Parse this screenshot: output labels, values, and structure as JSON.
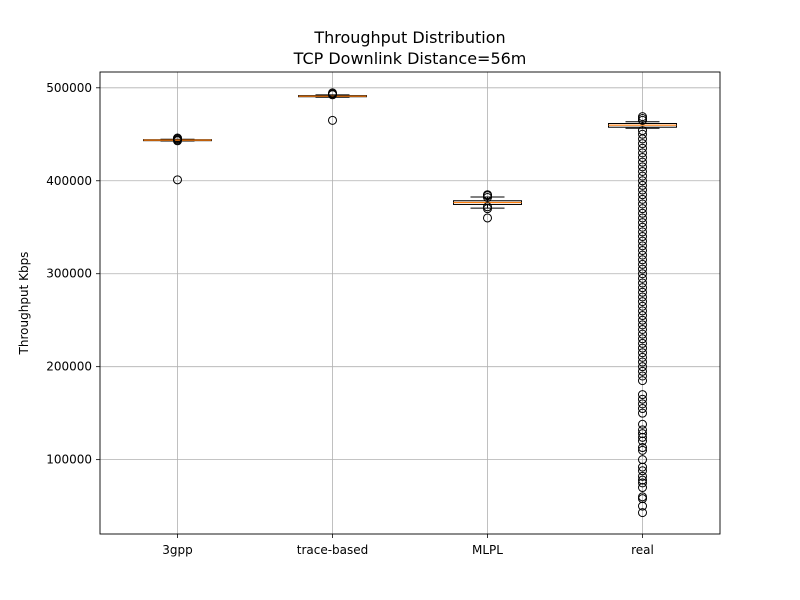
{
  "chart_data": {
    "type": "box",
    "title": "Throughput Distribution",
    "subtitle": "TCP Downlink Distance=56m",
    "xlabel": "",
    "ylabel": "Throughput Kbps",
    "ylim": [
      20000,
      517000
    ],
    "grid": true,
    "y_ticks": [
      100000,
      200000,
      300000,
      400000,
      500000
    ],
    "y_tick_labels": [
      "100000",
      "200000",
      "300000",
      "400000",
      "500000"
    ],
    "categories": [
      "3gpp",
      "trace-based",
      "MLPL",
      "real"
    ],
    "colors": {
      "median": "#ff7f0e",
      "box": "#000000",
      "grid": "#b0b0b0"
    },
    "boxes": [
      {
        "name": "3gpp",
        "q1": 443200,
        "median": 443700,
        "q3": 444200,
        "whisker_low": 442800,
        "whisker_high": 444600,
        "fliers": [
          401000,
          443000,
          444000,
          445000,
          446000
        ]
      },
      {
        "name": "trace-based",
        "q1": 490400,
        "median": 491000,
        "q3": 491600,
        "whisker_low": 489800,
        "whisker_high": 492400,
        "fliers": [
          465000,
          492500,
          493500,
          494500
        ]
      },
      {
        "name": "MLPL",
        "q1": 374500,
        "median": 376600,
        "q3": 378500,
        "whisker_low": 370500,
        "whisker_high": 382500,
        "fliers": [
          360000,
          370000,
          372000,
          382000,
          384000,
          385000
        ]
      },
      {
        "name": "real",
        "q1": 457600,
        "median": 459800,
        "q3": 461600,
        "whisker_low": 456500,
        "whisker_high": 463500,
        "fliers": [
          43000,
          50000,
          58000,
          60000,
          70000,
          75000,
          78000,
          82000,
          88000,
          92000,
          100000,
          110000,
          113000,
          120000,
          124000,
          128000,
          132000,
          138000,
          150000,
          155000,
          160000,
          165000,
          170000,
          185000,
          190000,
          195000,
          200000,
          205000,
          210000,
          215000,
          220000,
          225000,
          230000,
          235000,
          240000,
          245000,
          250000,
          255000,
          260000,
          265000,
          270000,
          275000,
          280000,
          285000,
          290000,
          295000,
          300000,
          305000,
          310000,
          315000,
          320000,
          325000,
          330000,
          335000,
          340000,
          345000,
          350000,
          355000,
          360000,
          365000,
          370000,
          375000,
          380000,
          385000,
          390000,
          395000,
          400000,
          405000,
          410000,
          415000,
          420000,
          425000,
          430000,
          435000,
          440000,
          445000,
          450000,
          454000,
          465000,
          467000,
          469000
        ]
      }
    ]
  }
}
